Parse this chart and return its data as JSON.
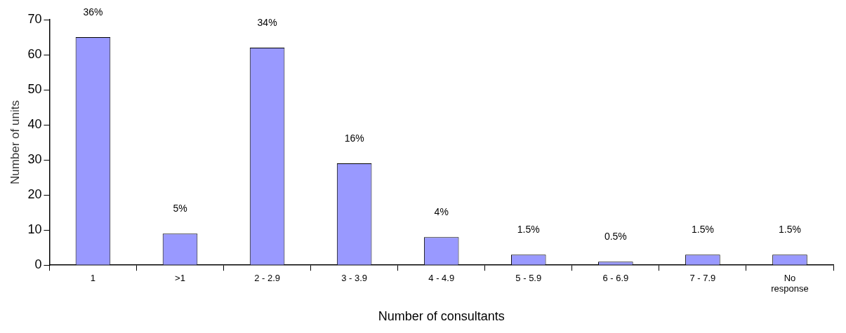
{
  "chart_data": {
    "type": "bar",
    "xlabel": "Number of consultants",
    "ylabel": "Number of units",
    "categories": [
      "1",
      ">1",
      "2 - 2.9",
      "3 - 3.9",
      "4 - 4.9",
      "5 - 5.9",
      "6 - 6.9",
      "7 - 7.9",
      "No response"
    ],
    "values": [
      65,
      9,
      62,
      29,
      8,
      3,
      1,
      3,
      3
    ],
    "annotations": [
      {
        "text": "36%",
        "x": "1",
        "y": 65
      },
      {
        "text": "5%",
        "x": ">1",
        "y": 9
      },
      {
        "text": "34%",
        "x": "2 - 2.9",
        "y": 62
      },
      {
        "text": "16%",
        "x": "3 - 3.9",
        "y": 29
      },
      {
        "text": "4%",
        "x": "4 - 4.9",
        "y": 8
      },
      {
        "text": "1.5%",
        "x": "5 - 5.9",
        "y": 3
      },
      {
        "text": "0.5%",
        "x": "6 - 6.9",
        "y": 1
      },
      {
        "text": "1.5%",
        "x": "7 - 7.9",
        "y": 3
      },
      {
        "text": "1.5%",
        "x": "No response",
        "y": 3
      }
    ],
    "color": "#9999ff",
    "ylim": [
      0,
      70
    ],
    "yticks": [
      0,
      10,
      20,
      30,
      40,
      50,
      60,
      70
    ],
    "grid": false,
    "legend": false
  }
}
